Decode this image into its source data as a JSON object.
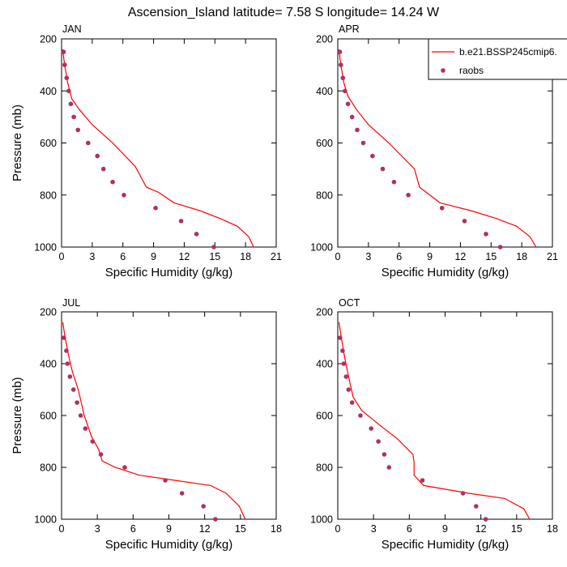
{
  "title": "Ascension_Island  latitude= 7.58 S longitude= 14.24 W",
  "legend": {
    "model_label": "b.e21.BSSP245cmip6.",
    "obs_label": "raobs"
  },
  "colors": {
    "model": "#ff0000",
    "obs": "#b03060",
    "axis": "#000000"
  },
  "chart_data": [
    {
      "type": "line",
      "panel": "JAN",
      "xlabel": "Specific Humidity (g/kg)",
      "ylabel": "Pressure (mb)",
      "xlim": [
        0,
        21
      ],
      "ylim": [
        200,
        1000
      ],
      "y_reversed": true,
      "xticks": [
        0,
        3,
        6,
        9,
        12,
        15,
        18,
        21
      ],
      "yticks": [
        200,
        400,
        600,
        800,
        1000
      ],
      "series": [
        {
          "name": "b.e21.BSSP245cmip6.",
          "style": "line",
          "points": [
            [
              0.1,
              240
            ],
            [
              0.3,
              300
            ],
            [
              0.6,
              370
            ],
            [
              1.0,
              430
            ],
            [
              1.7,
              470
            ],
            [
              3.0,
              530
            ],
            [
              5.0,
              600
            ],
            [
              7.2,
              690
            ],
            [
              8.3,
              770
            ],
            [
              9.5,
              790
            ],
            [
              11.0,
              830
            ],
            [
              13.5,
              860
            ],
            [
              15.5,
              890
            ],
            [
              17.2,
              920
            ],
            [
              18.3,
              960
            ],
            [
              18.8,
              1000
            ]
          ]
        },
        {
          "name": "raobs",
          "style": "points",
          "points": [
            [
              0.2,
              250
            ],
            [
              0.3,
              300
            ],
            [
              0.5,
              350
            ],
            [
              0.7,
              400
            ],
            [
              0.9,
              450
            ],
            [
              1.2,
              500
            ],
            [
              1.6,
              550
            ],
            [
              2.6,
              600
            ],
            [
              3.5,
              650
            ],
            [
              4.1,
              700
            ],
            [
              5.0,
              750
            ],
            [
              6.1,
              800
            ],
            [
              9.2,
              850
            ],
            [
              11.7,
              900
            ],
            [
              13.2,
              950
            ],
            [
              14.9,
              1000
            ]
          ]
        }
      ]
    },
    {
      "type": "line",
      "panel": "APR",
      "xlabel": "Specific Humidity (g/kg)",
      "ylabel": "",
      "xlim": [
        0,
        21
      ],
      "ylim": [
        200,
        1000
      ],
      "y_reversed": true,
      "xticks": [
        0,
        3,
        6,
        9,
        12,
        15,
        18,
        21
      ],
      "yticks": [
        200,
        400,
        600,
        800,
        1000
      ],
      "series": [
        {
          "name": "b.e21.BSSP245cmip6.",
          "style": "line",
          "points": [
            [
              0.1,
              240
            ],
            [
              0.3,
              300
            ],
            [
              0.6,
              370
            ],
            [
              1.0,
              420
            ],
            [
              1.8,
              470
            ],
            [
              3.0,
              530
            ],
            [
              5.0,
              600
            ],
            [
              7.5,
              700
            ],
            [
              8.0,
              770
            ],
            [
              10.0,
              830
            ],
            [
              13.0,
              860
            ],
            [
              15.5,
              890
            ],
            [
              17.5,
              920
            ],
            [
              18.8,
              960
            ],
            [
              19.4,
              1000
            ]
          ]
        },
        {
          "name": "raobs",
          "style": "points",
          "points": [
            [
              0.2,
              250
            ],
            [
              0.3,
              300
            ],
            [
              0.5,
              350
            ],
            [
              0.7,
              400
            ],
            [
              1.0,
              450
            ],
            [
              1.4,
              500
            ],
            [
              1.9,
              550
            ],
            [
              2.5,
              600
            ],
            [
              3.4,
              650
            ],
            [
              4.4,
              700
            ],
            [
              5.5,
              750
            ],
            [
              6.9,
              800
            ],
            [
              10.2,
              850
            ],
            [
              12.4,
              900
            ],
            [
              14.5,
              950
            ],
            [
              15.9,
              1000
            ]
          ]
        }
      ]
    },
    {
      "type": "line",
      "panel": "JUL",
      "xlabel": "Specific Humidity (g/kg)",
      "ylabel": "Pressure (mb)",
      "xlim": [
        0,
        18
      ],
      "ylim": [
        200,
        1000
      ],
      "y_reversed": true,
      "xticks": [
        0,
        3,
        6,
        9,
        12,
        15,
        18
      ],
      "yticks": [
        200,
        400,
        600,
        800,
        1000
      ],
      "series": [
        {
          "name": "b.e21.BSSP245cmip6.",
          "style": "line",
          "points": [
            [
              0.1,
              240
            ],
            [
              0.3,
              300
            ],
            [
              0.6,
              370
            ],
            [
              0.9,
              430
            ],
            [
              1.4,
              500
            ],
            [
              1.9,
              600
            ],
            [
              2.5,
              680
            ],
            [
              3.1,
              730
            ],
            [
              3.4,
              775
            ],
            [
              4.5,
              800
            ],
            [
              6.5,
              830
            ],
            [
              9.5,
              850
            ],
            [
              12.5,
              870
            ],
            [
              13.8,
              900
            ],
            [
              14.9,
              950
            ],
            [
              15.4,
              1000
            ]
          ]
        },
        {
          "name": "raobs",
          "style": "points",
          "points": [
            [
              0.2,
              300
            ],
            [
              0.4,
              350
            ],
            [
              0.5,
              400
            ],
            [
              0.7,
              450
            ],
            [
              1.0,
              500
            ],
            [
              1.3,
              550
            ],
            [
              1.6,
              600
            ],
            [
              2.0,
              650
            ],
            [
              2.6,
              700
            ],
            [
              3.3,
              750
            ],
            [
              5.3,
              800
            ],
            [
              8.7,
              850
            ],
            [
              10.1,
              900
            ],
            [
              11.9,
              950
            ],
            [
              12.9,
              1000
            ]
          ]
        }
      ]
    },
    {
      "type": "line",
      "panel": "OCT",
      "xlabel": "Specific Humidity (g/kg)",
      "ylabel": "",
      "xlim": [
        0,
        18
      ],
      "ylim": [
        200,
        1000
      ],
      "y_reversed": true,
      "xticks": [
        0,
        3,
        6,
        9,
        12,
        15,
        18
      ],
      "yticks": [
        200,
        400,
        600,
        800,
        1000
      ],
      "series": [
        {
          "name": "b.e21.BSSP245cmip6.",
          "style": "line",
          "points": [
            [
              0.1,
              240
            ],
            [
              0.3,
              300
            ],
            [
              0.6,
              380
            ],
            [
              0.9,
              450
            ],
            [
              1.3,
              530
            ],
            [
              2.0,
              580
            ],
            [
              3.6,
              640
            ],
            [
              5.0,
              690
            ],
            [
              6.3,
              750
            ],
            [
              6.4,
              780
            ],
            [
              6.4,
              830
            ],
            [
              7.2,
              870
            ],
            [
              11.0,
              900
            ],
            [
              14.0,
              920
            ],
            [
              15.6,
              960
            ],
            [
              16.1,
              1000
            ]
          ]
        },
        {
          "name": "raobs",
          "style": "points",
          "points": [
            [
              0.2,
              300
            ],
            [
              0.4,
              350
            ],
            [
              0.5,
              400
            ],
            [
              0.7,
              450
            ],
            [
              0.9,
              500
            ],
            [
              1.2,
              550
            ],
            [
              1.9,
              600
            ],
            [
              2.8,
              650
            ],
            [
              3.4,
              700
            ],
            [
              3.9,
              750
            ],
            [
              4.3,
              800
            ],
            [
              7.1,
              850
            ],
            [
              10.5,
              900
            ],
            [
              11.6,
              950
            ],
            [
              12.4,
              1000
            ]
          ]
        }
      ]
    }
  ]
}
